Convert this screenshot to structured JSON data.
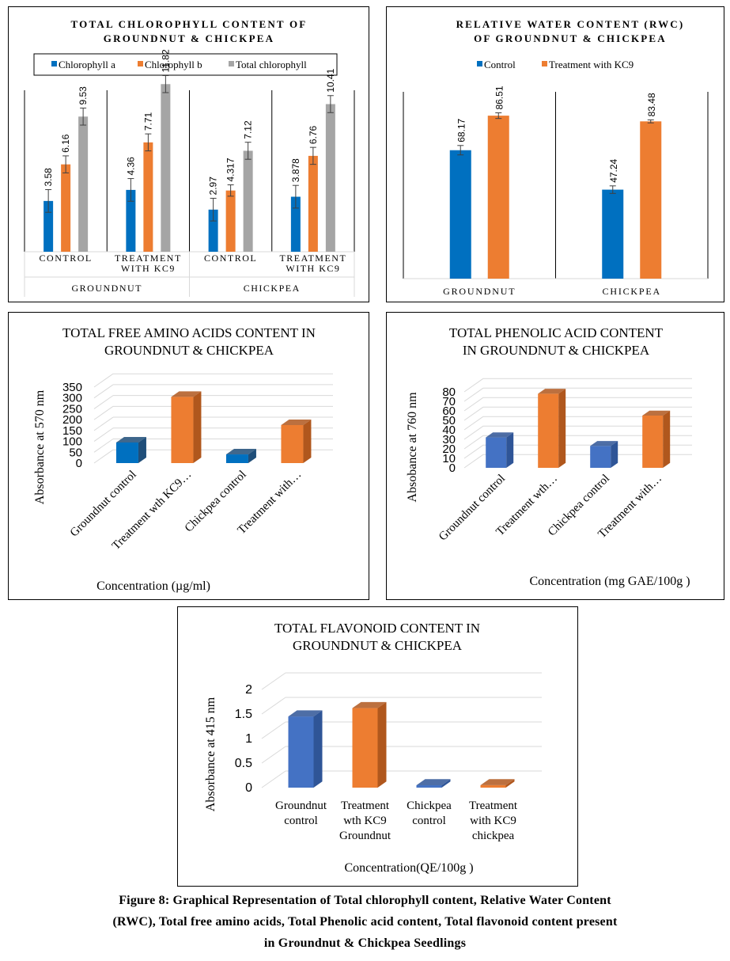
{
  "colors": {
    "blue": "#0070C0",
    "orange": "#ED7D31",
    "gray": "#A5A5A5",
    "blue3d": "#4472C4",
    "blue3d_side": "#2F5597",
    "orange_side": "#B0571D",
    "grid": "#D9D9D9"
  },
  "chart_data": [
    {
      "id": "chlorophyll",
      "type": "bar",
      "title": [
        "TOTAL CHLOROPHYLL CONTENT OF",
        "GROUNDNUT & CHICKPEA"
      ],
      "groups": [
        "GROUNDNUT",
        "CHICKPEA"
      ],
      "categories": [
        "CONTROL",
        "TREATMENT WITH KC9",
        "CONTROL",
        "TREATMENT WITH KC9"
      ],
      "category_lines": [
        [
          "CONTROL"
        ],
        [
          "TREATMENT",
          "WITH KC9"
        ],
        [
          "CONTROL"
        ],
        [
          "TREATMENT",
          "WITH KC9"
        ]
      ],
      "series": [
        {
          "name": "Chlorophyll a",
          "color": "#0070C0",
          "values": [
            3.58,
            4.36,
            2.97,
            3.878
          ],
          "labels": [
            "3.58",
            "4.36",
            "2.97",
            "3.878"
          ],
          "errors": [
            0.8,
            0.8,
            0.8,
            0.8
          ]
        },
        {
          "name": "Chlorophyll b",
          "color": "#ED7D31",
          "values": [
            6.16,
            7.71,
            4.317,
            6.76
          ],
          "labels": [
            "6.16",
            "7.71",
            "4.317",
            "6.76"
          ],
          "errors": [
            0.6,
            0.6,
            0.4,
            0.6
          ]
        },
        {
          "name": "Total chlorophyll",
          "color": "#A5A5A5",
          "values": [
            9.53,
            11.82,
            7.12,
            10.41
          ],
          "labels": [
            "9.53",
            "11.82",
            "7.12",
            "10.41"
          ],
          "errors": [
            0.6,
            0.6,
            0.6,
            0.6
          ]
        }
      ],
      "legend": "top",
      "ylim": [
        0,
        14
      ],
      "grid": false
    },
    {
      "id": "rwc",
      "type": "bar",
      "title": [
        "RELATIVE WATER CONTENT (RWC)",
        "OF GROUNDNUT & CHICKPEA"
      ],
      "categories": [
        "GROUNDNUT",
        "CHICKPEA"
      ],
      "series": [
        {
          "name": "Control",
          "color": "#0070C0",
          "values": [
            68.17,
            47.24
          ],
          "labels": [
            "68.17",
            "47.24"
          ],
          "errors": [
            2.5,
            2.0
          ]
        },
        {
          "name": "Treatment with KC9",
          "color": "#ED7D31",
          "values": [
            86.51,
            83.48
          ],
          "labels": [
            "86.51",
            "83.48"
          ],
          "errors": [
            1.5,
            0.8
          ]
        }
      ],
      "legend": "top",
      "ylim": [
        0,
        100
      ],
      "grid": false
    },
    {
      "id": "amino",
      "type": "bar",
      "style": "3d",
      "title": [
        "TOTAL FREE AMINO ACIDS CONTENT IN",
        "GROUNDNUT & CHICKPEA"
      ],
      "categories": [
        "Groundnut control",
        "Treatment wth KC9…",
        "Chickpea control",
        "Treatment with…"
      ],
      "values": [
        95,
        305,
        40,
        175
      ],
      "bar_colors": [
        "blue",
        "orange",
        "blue",
        "orange"
      ],
      "xlabel": "Concentration (µg/ml)",
      "ylabel": "Absorbance at 570 nm",
      "yticks": [
        "0",
        "50",
        "100",
        "150",
        "200",
        "250",
        "300",
        "350"
      ],
      "ylim": [
        0,
        350
      ],
      "grid": true
    },
    {
      "id": "phenolic",
      "type": "bar",
      "style": "3d",
      "title": [
        "TOTAL PHENOLIC ACID CONTENT",
        "IN GROUNDNUT & CHICKPEA"
      ],
      "categories": [
        "Groundnut control",
        "Treatment wth…",
        "Chickpea control",
        "Treatment with…"
      ],
      "values": [
        32,
        78,
        23,
        55
      ],
      "bar_colors": [
        "blue",
        "orange",
        "blue",
        "orange"
      ],
      "xlabel": "Concentration (mg GAE/100g )",
      "ylabel": "Absobance at 760 nm",
      "yticks": [
        "0",
        "10",
        "20",
        "30",
        "40",
        "50",
        "60",
        "70",
        "80"
      ],
      "ylim": [
        0,
        80
      ],
      "grid": true
    },
    {
      "id": "flavonoid",
      "type": "bar",
      "style": "3d",
      "title": [
        "TOTAL FLAVONOID CONTENT IN",
        "GROUNDNUT & CHICKPEA"
      ],
      "categories": [
        "Groundnut control",
        "Treatment wth KC9 Groundnut",
        "Chickpea control",
        "Treatment with KC9 chickpea"
      ],
      "category_lines": [
        [
          "Groundnut",
          "control"
        ],
        [
          "Treatment",
          "wth KC9",
          "Groundnut"
        ],
        [
          "Chickpea",
          "control"
        ],
        [
          "Treatment",
          "with KC9",
          "chickpea"
        ]
      ],
      "values": [
        1.45,
        1.62,
        0.01,
        0.05
      ],
      "bar_colors": [
        "blue",
        "orange",
        "blue",
        "orange"
      ],
      "xlabel": "Concentration(QE/100g )",
      "ylabel": "Absorbance at 415 nm",
      "yticks": [
        "0",
        "0.5",
        "1",
        "1.5",
        "2"
      ],
      "ylim": [
        0,
        2
      ],
      "grid": true
    }
  ],
  "caption": {
    "lines": [
      "Figure 8: Graphical Representation of Total chlorophyll content, Relative Water Content",
      "(RWC), Total free amino acids, Total Phenolic acid content, Total flavonoid content present",
      "in Groundnut & Chickpea Seedlings"
    ]
  }
}
